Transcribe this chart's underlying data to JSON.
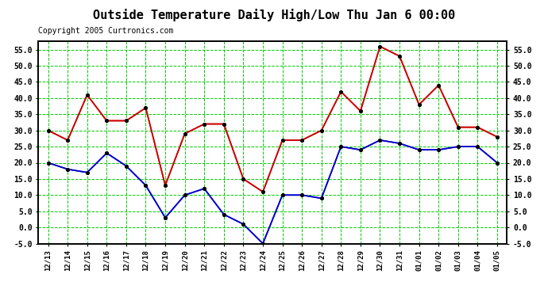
{
  "title": "Outside Temperature Daily High/Low Thu Jan 6 00:00",
  "copyright": "Copyright 2005 Curtronics.com",
  "x_labels": [
    "12/13",
    "12/14",
    "12/15",
    "12/16",
    "12/17",
    "12/18",
    "12/19",
    "12/20",
    "12/21",
    "12/22",
    "12/23",
    "12/24",
    "12/25",
    "12/26",
    "12/27",
    "12/28",
    "12/29",
    "12/30",
    "12/31",
    "01/01",
    "01/02",
    "01/03",
    "01/04",
    "01/05"
  ],
  "high_values": [
    30,
    27,
    41,
    33,
    33,
    37,
    13,
    29,
    32,
    32,
    15,
    11,
    27,
    27,
    30,
    42,
    36,
    56,
    53,
    38,
    44,
    31,
    31,
    28
  ],
  "low_values": [
    20,
    18,
    17,
    23,
    19,
    13,
    3,
    10,
    12,
    4,
    1,
    -5,
    10,
    10,
    9,
    25,
    24,
    27,
    26,
    24,
    24,
    25,
    25,
    20
  ],
  "high_color": "#cc0000",
  "low_color": "#0000cc",
  "bg_color": "#ffffff",
  "grid_color": "#00cc00",
  "border_color": "#000000",
  "ylim": [
    -5,
    57.5
  ],
  "yticks": [
    -5.0,
    0.0,
    5.0,
    10.0,
    15.0,
    20.0,
    25.0,
    30.0,
    35.0,
    40.0,
    45.0,
    50.0,
    55.0
  ],
  "title_fontsize": 11,
  "copyright_fontsize": 7
}
